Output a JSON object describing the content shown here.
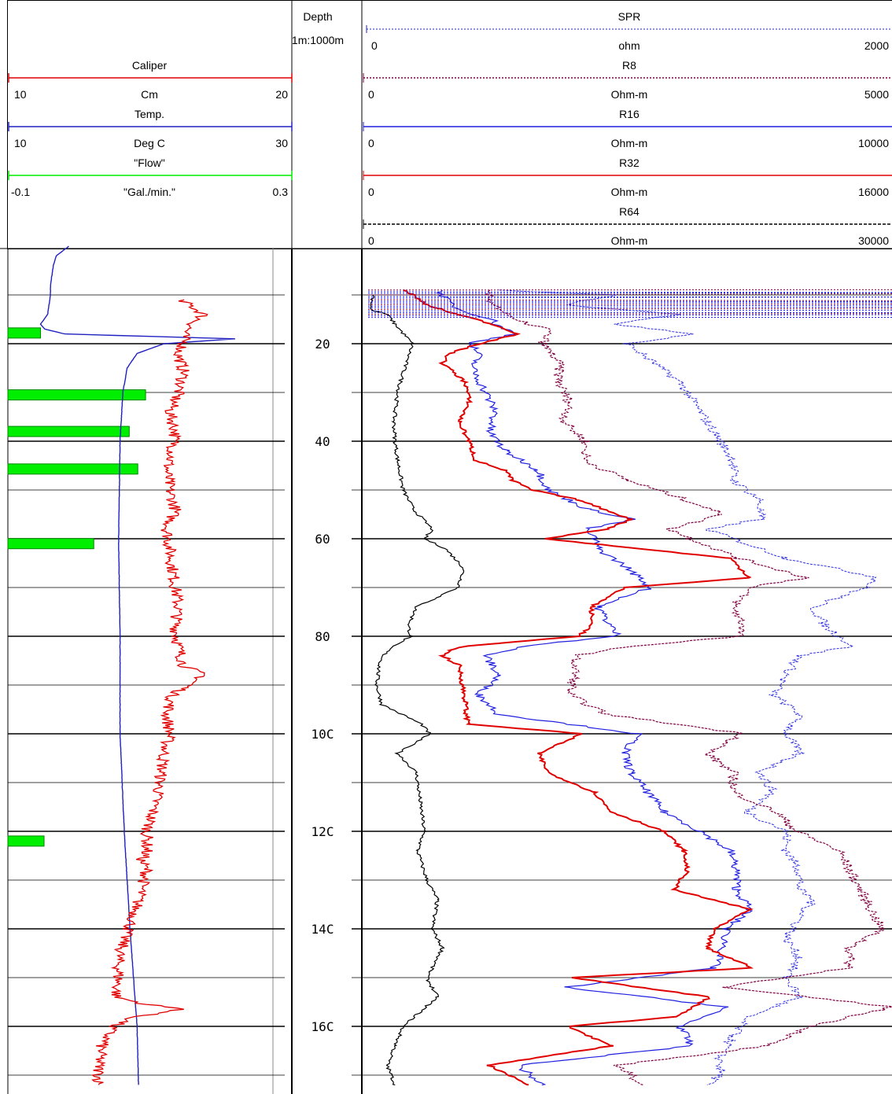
{
  "chart_data": {
    "type": "line",
    "title": "",
    "depth_track": {
      "label": "Depth",
      "scale": "1m:1000m",
      "ticks": [
        "20",
        "40",
        "60",
        "80",
        "10C",
        "12C",
        "14C",
        "16C"
      ],
      "ylim": [
        0,
        172
      ],
      "major_grid_every": 20,
      "minor_grid_every": 10,
      "grid": true
    },
    "left_track": {
      "curves": [
        {
          "name": "Caliper",
          "unit": "Cm",
          "min": "10",
          "max": "20",
          "color": "#e00000"
        },
        {
          "name": "Temp.",
          "unit": "Deg C",
          "min": "10",
          "max": "30",
          "color": "#2020c0"
        },
        {
          "name": "\"Flow\"",
          "unit": "\"Gal./min.\"",
          "min": "-0.1",
          "max": "0.3",
          "color": "#00ee00"
        }
      ],
      "caliper": {
        "depth": [
          0,
          10,
          11,
          12,
          14,
          16,
          18,
          20,
          22,
          26,
          30,
          34,
          38,
          42,
          46,
          50,
          54,
          58,
          62,
          66,
          70,
          74,
          78,
          82,
          86,
          88,
          90,
          92,
          96,
          100,
          104,
          108,
          112,
          116,
          120,
          124,
          126,
          128,
          130,
          134,
          138,
          142,
          146,
          150,
          154,
          155.5,
          156.5,
          158,
          160,
          164,
          168,
          172
        ],
        "values": [
          null,
          null,
          16.0,
          16.4,
          16.9,
          16.5,
          16.2,
          16.2,
          16.0,
          16.2,
          16.0,
          15.7,
          15.9,
          15.8,
          15.6,
          15.7,
          15.9,
          15.6,
          15.7,
          15.8,
          15.9,
          16.0,
          15.9,
          16.0,
          16.2,
          16.9,
          16.4,
          15.8,
          15.6,
          15.7,
          15.5,
          15.4,
          15.3,
          15.1,
          14.9,
          14.9,
          14.7,
          14.9,
          14.8,
          14.6,
          14.4,
          14.1,
          13.9,
          13.9,
          13.8,
          14.9,
          16.2,
          14.5,
          13.7,
          13.3,
          13.2,
          13.2
        ]
      },
      "temperature": {
        "depth": [
          0,
          2,
          4,
          6,
          8,
          10,
          12,
          14,
          16,
          17,
          18,
          18.5,
          19,
          20,
          22,
          25,
          30,
          35,
          40,
          60,
          80,
          100,
          120,
          140,
          160,
          172
        ],
        "values": [
          14.3,
          13.4,
          13.2,
          13.1,
          13.0,
          13.0,
          12.9,
          12.8,
          12.3,
          12.6,
          14.0,
          20.0,
          26.0,
          21.0,
          19.1,
          18.4,
          18.1,
          18.0,
          17.9,
          17.8,
          17.9,
          17.9,
          18.2,
          18.6,
          19.1,
          19.2
        ]
      },
      "flow_bars": [
        {
          "depth": 17.8,
          "value": -0.054
        },
        {
          "depth": 30.5,
          "value": 0.094
        },
        {
          "depth": 38.0,
          "value": 0.071
        },
        {
          "depth": 45.7,
          "value": 0.083
        },
        {
          "depth": 61.0,
          "value": 0.021
        },
        {
          "depth": 122.0,
          "value": -0.049
        }
      ]
    },
    "right_track": {
      "curves": [
        {
          "name": "SPR",
          "unit": "ohm",
          "min": "0",
          "max": "2000",
          "color": "#000000",
          "style": "dotted"
        },
        {
          "name": "R8",
          "unit": "Ohm-m",
          "min": "0",
          "max": "5000",
          "color": "#800040",
          "style": "dotted"
        },
        {
          "name": "R16",
          "unit": "Ohm-m",
          "min": "0",
          "max": "10000",
          "color": "#2020e0",
          "style": "solid"
        },
        {
          "name": "R32",
          "unit": "Ohm-m",
          "min": "0",
          "max": "16000",
          "color": "#e00000",
          "style": "solid"
        },
        {
          "name": "R64",
          "unit": "Ohm-m",
          "min": "0",
          "max": "30000",
          "color": "#000000",
          "style": "dashed"
        }
      ],
      "spr": {
        "depth": [
          10,
          13,
          14,
          16,
          20,
          26,
          30,
          36,
          40,
          44,
          50,
          54,
          58,
          60,
          62,
          66,
          70,
          74,
          78,
          80,
          82,
          84,
          86,
          90,
          94,
          98,
          100,
          104,
          108,
          114,
          120,
          124,
          130,
          134,
          140,
          144,
          150,
          154,
          160,
          164,
          168,
          172
        ],
        "values": [
          40,
          25,
          90,
          120,
          185,
          150,
          130,
          115,
          120,
          130,
          150,
          190,
          260,
          230,
          310,
          380,
          360,
          200,
          170,
          180,
          110,
          75,
          60,
          50,
          70,
          220,
          250,
          130,
          200,
          215,
          230,
          205,
          240,
          280,
          260,
          300,
          240,
          280,
          150,
          120,
          90,
          120
        ]
      },
      "r32": {
        "depth": [
          9,
          10,
          12,
          13.5,
          15,
          16,
          18,
          20,
          22,
          24,
          28,
          32,
          36,
          40,
          44,
          46,
          48,
          50,
          52,
          56,
          58,
          60,
          64,
          68,
          70,
          74,
          78,
          80,
          82,
          83,
          84,
          86,
          90,
          94,
          96,
          98,
          100,
          104,
          108,
          112,
          116,
          120,
          124,
          128,
          132,
          136,
          140,
          144,
          148,
          150,
          154,
          158,
          160,
          164,
          168,
          172
        ],
        "values": [
          1200,
          1500,
          1900,
          2600,
          3400,
          3900,
          4700,
          3500,
          2600,
          2400,
          3100,
          3200,
          2900,
          3200,
          3400,
          4300,
          4500,
          5100,
          6500,
          8100,
          7400,
          5500,
          11100,
          11700,
          7900,
          6900,
          6900,
          6500,
          3100,
          2600,
          2400,
          2900,
          3000,
          3100,
          3100,
          3200,
          6600,
          5300,
          5600,
          7000,
          7500,
          9100,
          9700,
          9800,
          9400,
          11700,
          10600,
          10400,
          11800,
          6300,
          10500,
          9500,
          6200,
          7500,
          3800,
          5000
        ]
      },
      "r16": {
        "depth": [
          9,
          11,
          13,
          15,
          16,
          18,
          20,
          22,
          25,
          30,
          34,
          38,
          42,
          46,
          50,
          54,
          56,
          58,
          60,
          62,
          66,
          70,
          74,
          78,
          80,
          82,
          84,
          88,
          92,
          96,
          100,
          104,
          108,
          112,
          116,
          120,
          124,
          128,
          132,
          136,
          140,
          144,
          148,
          152,
          156,
          160,
          164,
          168,
          172
        ],
        "values": [
          2300,
          2500,
          2900,
          3900,
          4000,
          4600,
          3200,
          3500,
          3300,
          3700,
          4000,
          3800,
          4300,
          5300,
          5600,
          6800,
          8200,
          6700,
          7000,
          7100,
          8000,
          8700,
          7100,
          7500,
          7700,
          4900,
          3700,
          4100,
          3500,
          4100,
          8300,
          7900,
          8100,
          8600,
          9100,
          10200,
          11100,
          11300,
          11300,
          11700,
          11000,
          10900,
          10600,
          6100,
          11000,
          9600,
          9900,
          4700,
          5400
        ]
      },
      "r8": {
        "depth": [
          9,
          11,
          13,
          15,
          17,
          20,
          24,
          28,
          32,
          36,
          40,
          44,
          48,
          52,
          55,
          58,
          60,
          64,
          68,
          70,
          74,
          78,
          80,
          82,
          84,
          88,
          92,
          96,
          100,
          104,
          108,
          112,
          116,
          120,
          124,
          128,
          132,
          136,
          140,
          144,
          148,
          152,
          156,
          160,
          164,
          168,
          172
        ],
        "values": [
          2300,
          2400,
          2600,
          2800,
          3500,
          3400,
          3700,
          3700,
          3900,
          3800,
          4200,
          4200,
          5000,
          6100,
          6800,
          5800,
          6200,
          7100,
          8400,
          7300,
          7000,
          7200,
          7100,
          5100,
          4000,
          4000,
          3900,
          4600,
          7200,
          6500,
          7000,
          7000,
          7800,
          8200,
          9000,
          9200,
          9400,
          9600,
          9800,
          9200,
          9200,
          6800,
          10000,
          8500,
          7600,
          4800,
          5300
        ]
      },
      "r64": {
        "depth": [
          9,
          10,
          12,
          14,
          16,
          18,
          20,
          24,
          28,
          32,
          36,
          40,
          44,
          48,
          52,
          56,
          58,
          60,
          64,
          68,
          70,
          74,
          78,
          80,
          82,
          84,
          88,
          92,
          96,
          100,
          104,
          108,
          112,
          116,
          120,
          124,
          128,
          132,
          134,
          138,
          142,
          146,
          150,
          154,
          158,
          162,
          166,
          170,
          172
        ],
        "values": [
          10000,
          19000,
          15000,
          24000,
          19000,
          25000,
          20000,
          22000,
          24000,
          25000,
          26000,
          27000,
          28000,
          28000,
          30000,
          30000,
          26000,
          28000,
          32000,
          39000,
          38000,
          34000,
          35000,
          36000,
          37000,
          33000,
          32000,
          31000,
          33000,
          32000,
          33000,
          30000,
          31000,
          29000,
          32000,
          32000,
          33000,
          33000,
          34000,
          33000,
          32000,
          33000,
          32000,
          33000,
          29000,
          28000,
          27000,
          27000,
          26000
        ]
      }
    }
  }
}
